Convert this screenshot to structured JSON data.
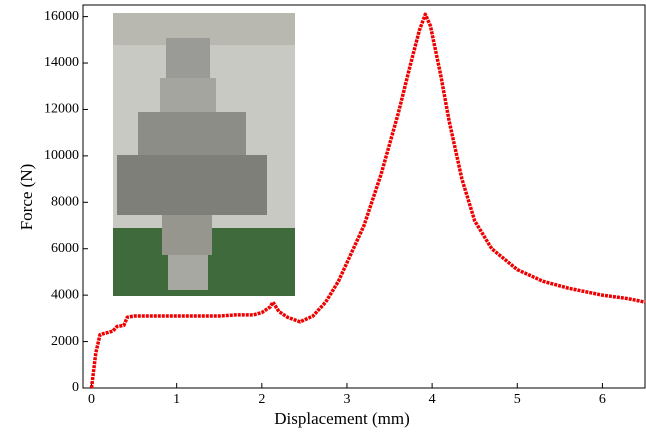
{
  "chart_data": {
    "type": "line",
    "xlabel": "Displacement  (mm)",
    "ylabel": "Force (N)",
    "xlim": [
      -0.1,
      6.5
    ],
    "ylim": [
      0,
      16500
    ],
    "xticks": [
      0,
      1,
      2,
      3,
      4,
      5,
      6
    ],
    "yticks": [
      0,
      2000,
      4000,
      6000,
      8000,
      10000,
      12000,
      14000,
      16000
    ],
    "series": [
      {
        "color": "#ee0000",
        "x": [
          0,
          0.05,
          0.1,
          0.2,
          0.25,
          0.3,
          0.38,
          0.42,
          0.5,
          1,
          1.5,
          1.7,
          1.9,
          2.0,
          2.1,
          2.13,
          2.2,
          2.3,
          2.45,
          2.6,
          2.75,
          2.9,
          3.0,
          3.2,
          3.4,
          3.6,
          3.75,
          3.85,
          3.92,
          3.98,
          4.1,
          4.2,
          4.35,
          4.5,
          4.7,
          5.0,
          5.3,
          5.6,
          6.0,
          6.3,
          6.5
        ],
        "values": [
          0,
          1500,
          2300,
          2400,
          2450,
          2650,
          2700,
          3050,
          3100,
          3100,
          3100,
          3150,
          3150,
          3250,
          3500,
          3700,
          3300,
          3050,
          2850,
          3100,
          3700,
          4600,
          5400,
          7000,
          9200,
          11800,
          14000,
          15400,
          16100,
          15600,
          13500,
          11500,
          9000,
          7200,
          6000,
          5100,
          4600,
          4300,
          4000,
          3850,
          3700
        ]
      }
    ]
  }
}
